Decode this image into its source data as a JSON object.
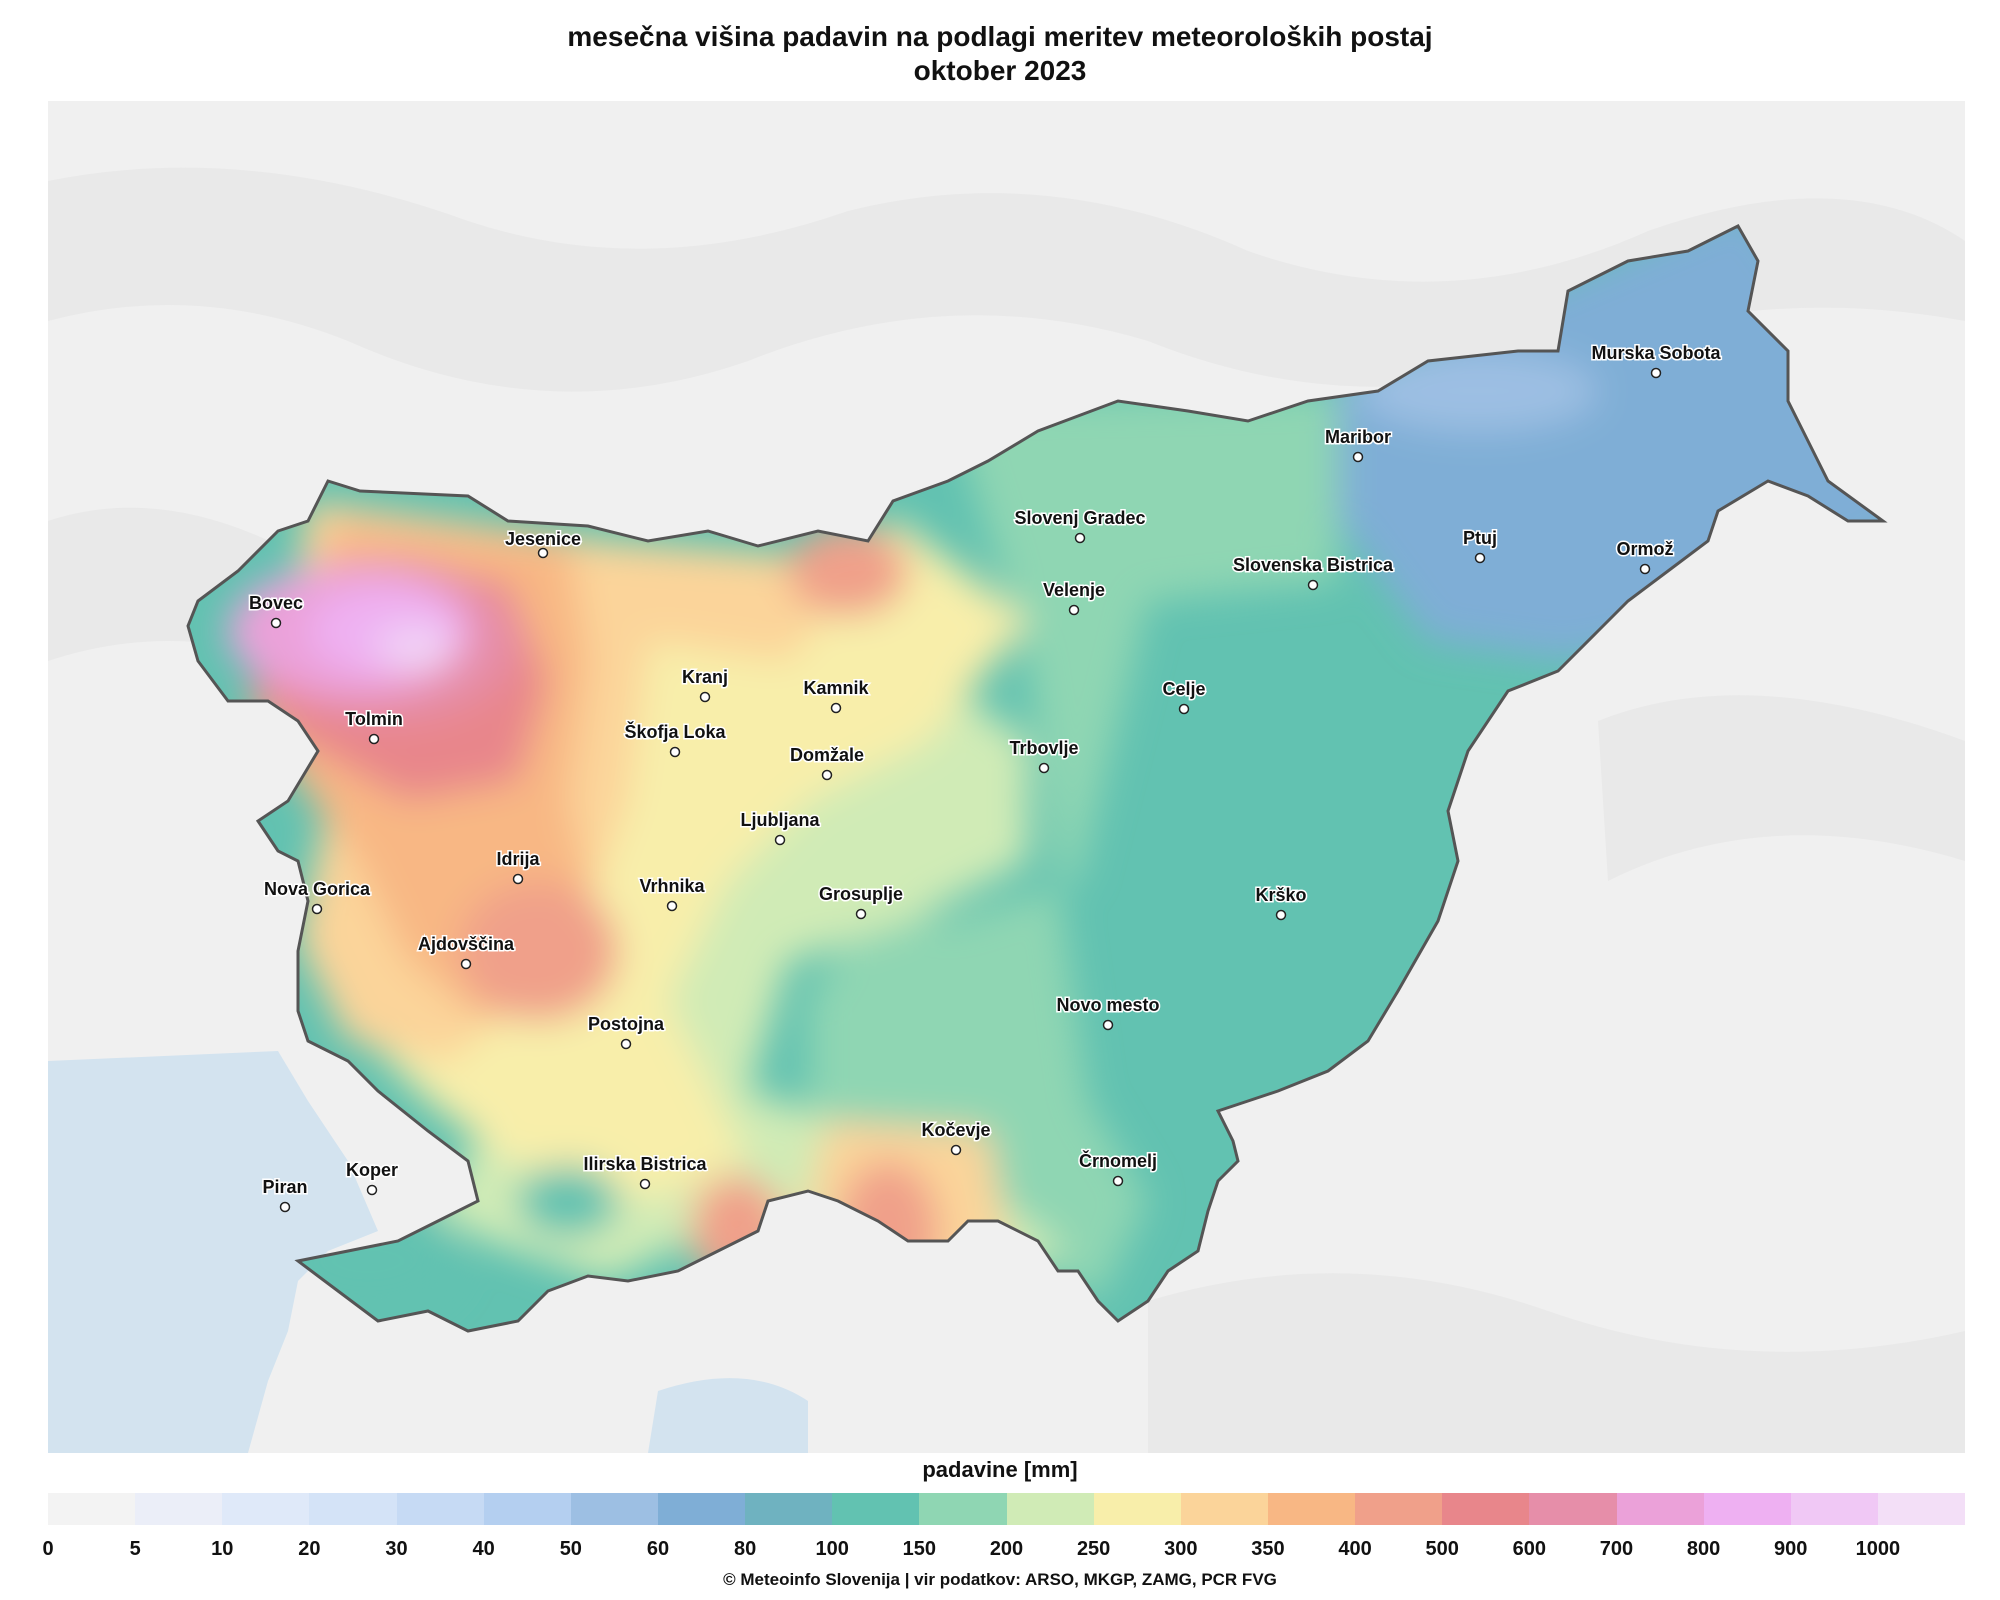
{
  "title_line1": "mesečna višina padavin na podlagi meritev meteoroloških postaj",
  "title_line2": "oktober 2023",
  "legend": {
    "title": "padavine [mm]",
    "ticks": [
      "0",
      "5",
      "10",
      "20",
      "30",
      "40",
      "50",
      "60",
      "80",
      "100",
      "150",
      "200",
      "250",
      "300",
      "350",
      "400",
      "500",
      "600",
      "700",
      "800",
      "900",
      "1000"
    ],
    "colors": [
      "#f3f3f3",
      "#ebeef8",
      "#dfe9f9",
      "#d4e3f7",
      "#c6daf4",
      "#b4cff0",
      "#9dbfe3",
      "#7faed6",
      "#6fb2c0",
      "#62c2b1",
      "#8fd6b3",
      "#d0ebb6",
      "#f8eeaa",
      "#fbd49a",
      "#f8b784",
      "#f0a08a",
      "#e8868b",
      "#e68ea9",
      "#eba1d9",
      "#eeb0f2",
      "#f0c8f5",
      "#f3dff7"
    ]
  },
  "cities": [
    {
      "name": "Jesenice"
    },
    {
      "name": "Bovec"
    },
    {
      "name": "Tolmin"
    },
    {
      "name": "Kranj"
    },
    {
      "name": "Kamnik"
    },
    {
      "name": "Škofja Loka"
    },
    {
      "name": "Domžale"
    },
    {
      "name": "Ljubljana"
    },
    {
      "name": "Idrija"
    },
    {
      "name": "Nova Gorica"
    },
    {
      "name": "Vrhnika"
    },
    {
      "name": "Grosuplje"
    },
    {
      "name": "Ajdovščina"
    },
    {
      "name": "Postojna"
    },
    {
      "name": "Kočevje"
    },
    {
      "name": "Ilirska Bistrica"
    },
    {
      "name": "Koper"
    },
    {
      "name": "Piran"
    },
    {
      "name": "Slovenj Gradec"
    },
    {
      "name": "Velenje"
    },
    {
      "name": "Celje"
    },
    {
      "name": "Trbovlje"
    },
    {
      "name": "Krško"
    },
    {
      "name": "Novo mesto"
    },
    {
      "name": "Črnomelj"
    },
    {
      "name": "Maribor"
    },
    {
      "name": "Murska Sobota"
    },
    {
      "name": "Ptuj"
    },
    {
      "name": "Ormož"
    },
    {
      "name": "Slovenska Bistrica"
    }
  ],
  "credit": "© Meteoinfo Slovenija  |  vir podatkov: ARSO, MKGP, ZAMG, PCR FVG"
}
